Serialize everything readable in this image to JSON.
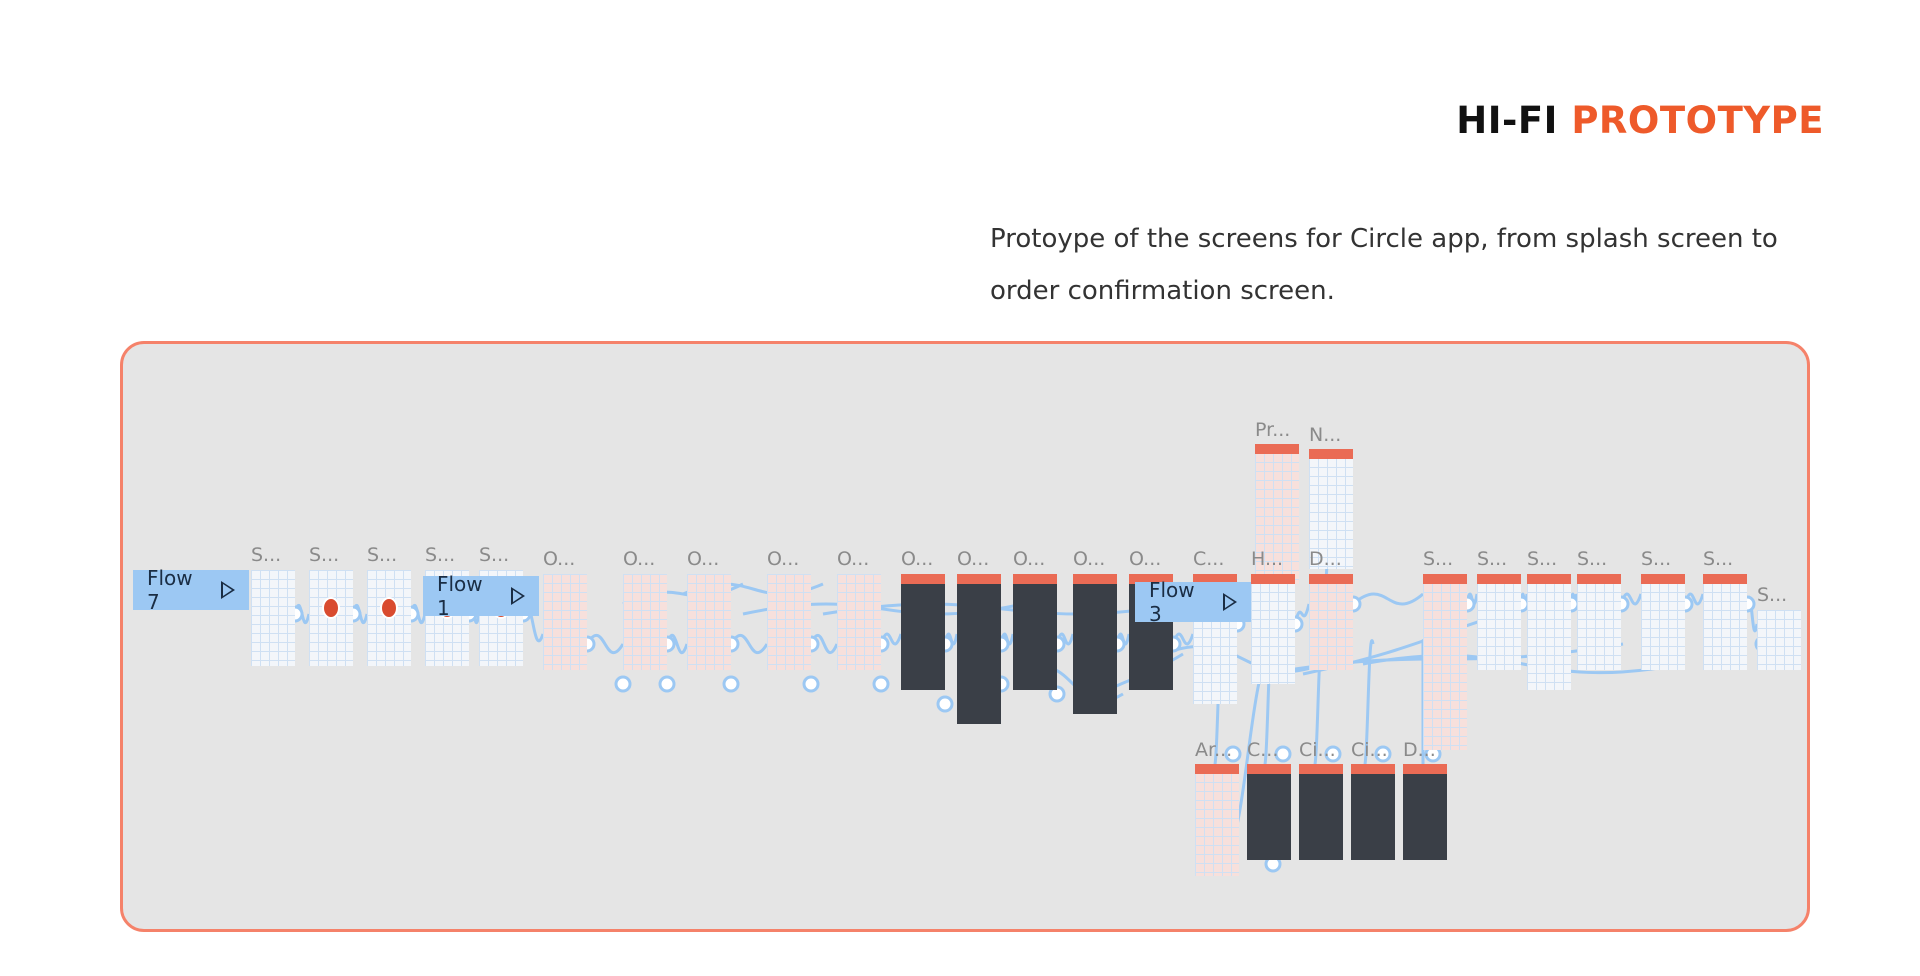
{
  "heading": {
    "prefix": "HI-FI",
    "accent": "PROTOTYPE"
  },
  "description": "Protoype of the screens for Circle app, from splash screen to order confirmation screen.",
  "flows": [
    "Flow 7",
    "Flow 1",
    "Flow 3"
  ],
  "frames": [
    {
      "label": "S..."
    },
    {
      "label": "S..."
    },
    {
      "label": "S..."
    },
    {
      "label": "S..."
    },
    {
      "label": "S..."
    },
    {
      "label": "O..."
    },
    {
      "label": "O..."
    },
    {
      "label": "O..."
    },
    {
      "label": "O..."
    },
    {
      "label": "O..."
    },
    {
      "label": "O..."
    },
    {
      "label": "O..."
    },
    {
      "label": "O..."
    },
    {
      "label": "O..."
    },
    {
      "label": "O..."
    },
    {
      "label": "C..."
    },
    {
      "label": "H..."
    },
    {
      "label": "D..."
    },
    {
      "label": "S..."
    },
    {
      "label": "S..."
    },
    {
      "label": "S..."
    },
    {
      "label": "S..."
    },
    {
      "label": "S..."
    },
    {
      "label": "S..."
    },
    {
      "label": "S..."
    },
    {
      "label": "Pr..."
    },
    {
      "label": "N..."
    },
    {
      "label": "Ar..."
    },
    {
      "label": "C..."
    },
    {
      "label": "Ci..."
    },
    {
      "label": "Ci..."
    },
    {
      "label": "D..."
    }
  ],
  "colors": {
    "accent": "#ee5a2a",
    "board_border": "#f5826a",
    "connector": "#9cc8f3"
  }
}
